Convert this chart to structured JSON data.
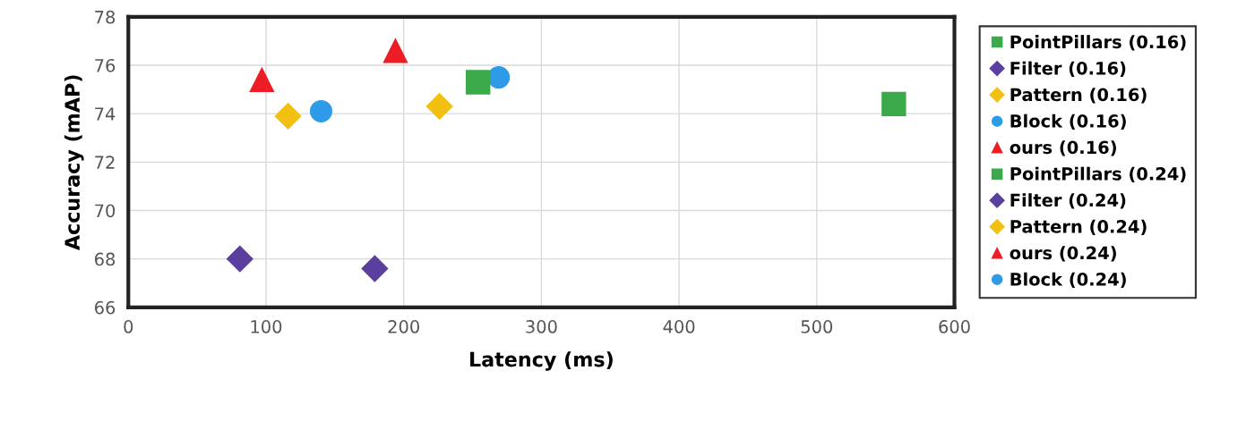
{
  "chart_data": {
    "type": "scatter",
    "xlabel": "Latency (ms)",
    "ylabel": "Accuracy (mAP)",
    "xlim": [
      0,
      600
    ],
    "xticks": [
      0,
      100,
      200,
      300,
      400,
      500,
      600
    ],
    "ylim": [
      66,
      78
    ],
    "yticks": [
      66,
      68,
      70,
      72,
      74,
      76,
      78
    ],
    "grid": true,
    "legend": "right",
    "series": [
      {
        "name": "PointPillars (0.16)",
        "color": "#3aaa4a",
        "marker": "square",
        "x": [
          556
        ],
        "values": [
          74.4
        ]
      },
      {
        "name": "Filter (0.16)",
        "color": "#5b3f9e",
        "marker": "diamond",
        "x": [
          179
        ],
        "values": [
          67.6
        ]
      },
      {
        "name": "Pattern (0.16)",
        "color": "#f2c012",
        "marker": "diamond",
        "x": [
          226
        ],
        "values": [
          74.3
        ]
      },
      {
        "name": "Block (0.16)",
        "color": "#2f9be8",
        "marker": "circle",
        "x": [
          269
        ],
        "values": [
          75.5
        ]
      },
      {
        "name": "ours (0.16)",
        "color": "#ee1c25",
        "marker": "triangle",
        "x": [
          194
        ],
        "values": [
          76.6
        ]
      },
      {
        "name": "PointPillars (0.24)",
        "color": "#3aaa4a",
        "marker": "square",
        "x": [
          254
        ],
        "values": [
          75.3
        ]
      },
      {
        "name": "Filter (0.24)",
        "color": "#5b3f9e",
        "marker": "diamond",
        "x": [
          81
        ],
        "values": [
          68.0
        ]
      },
      {
        "name": "Pattern (0.24)",
        "color": "#f2c012",
        "marker": "diamond",
        "x": [
          116
        ],
        "values": [
          73.9
        ]
      },
      {
        "name": "ours (0.24)",
        "color": "#ee1c25",
        "marker": "triangle",
        "x": [
          97
        ],
        "values": [
          75.4
        ]
      },
      {
        "name": "Block (0.24)",
        "color": "#2f9be8",
        "marker": "circle",
        "x": [
          140
        ],
        "values": [
          74.1
        ]
      }
    ]
  }
}
